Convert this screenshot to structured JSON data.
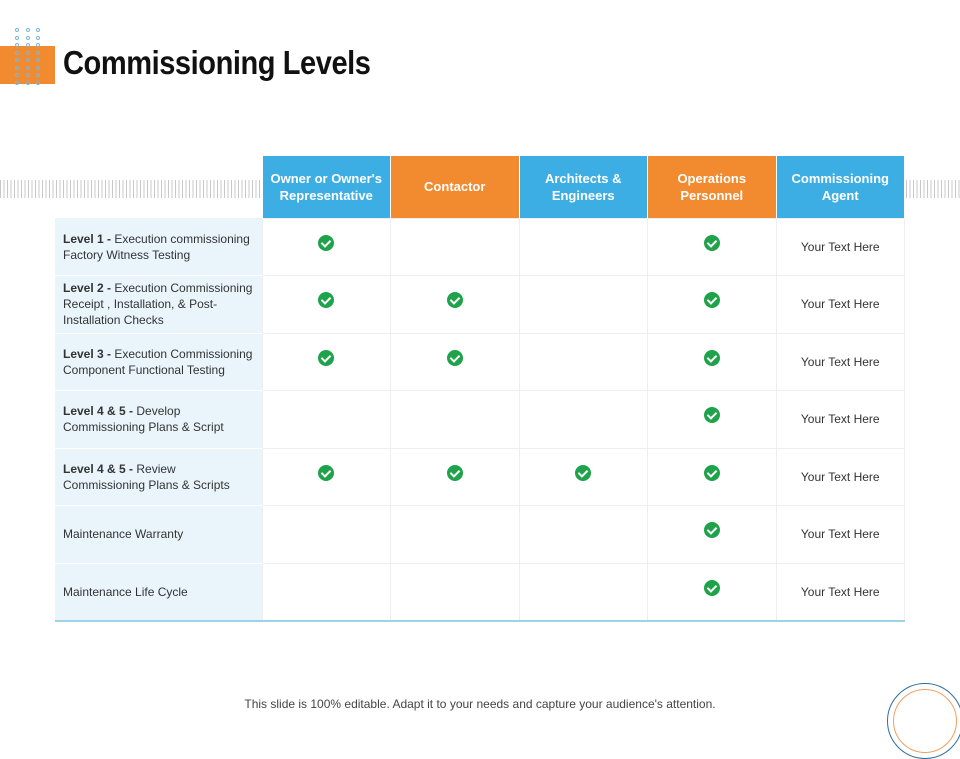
{
  "title": "Commissioning Levels",
  "colors": {
    "blue": "#3daee3",
    "orange": "#f28a30",
    "check": "#1fa34a",
    "label_bg": "#eaf5fb"
  },
  "headers": [
    "Owner or Owner's Representative",
    "Contactor",
    "Architects & Engineers",
    "Operations Personnel",
    "Commissioning Agent"
  ],
  "rows": [
    {
      "bold": "Level 1 - ",
      "text": "Execution commissioning Factory Witness Testing",
      "checks": [
        true,
        false,
        false,
        true
      ],
      "agent": "Your Text Here"
    },
    {
      "bold": "Level 2 - ",
      "text": "Execution Commissioning Receipt , Installation, & Post-Installation Checks",
      "checks": [
        true,
        true,
        false,
        true
      ],
      "agent": "Your Text Here"
    },
    {
      "bold": "Level 3 - ",
      "text": "Execution Commissioning Component Functional Testing",
      "checks": [
        true,
        true,
        false,
        true
      ],
      "agent": "Your Text Here"
    },
    {
      "bold": "Level 4 & 5 - ",
      "text": "Develop Commissioning Plans & Script",
      "checks": [
        false,
        false,
        false,
        true
      ],
      "agent": "Your Text Here"
    },
    {
      "bold": "Level 4 & 5 - ",
      "text": "Review Commissioning Plans & Scripts",
      "checks": [
        true,
        true,
        true,
        true
      ],
      "agent": "Your Text Here"
    },
    {
      "bold": "",
      "text": "Maintenance Warranty",
      "checks": [
        false,
        false,
        false,
        true
      ],
      "agent": "Your Text Here"
    },
    {
      "bold": "",
      "text": "Maintenance Life Cycle",
      "checks": [
        false,
        false,
        false,
        true
      ],
      "agent": "Your Text Here"
    }
  ],
  "footer": "This slide is 100% editable. Adapt it to your needs and capture your audience's attention."
}
